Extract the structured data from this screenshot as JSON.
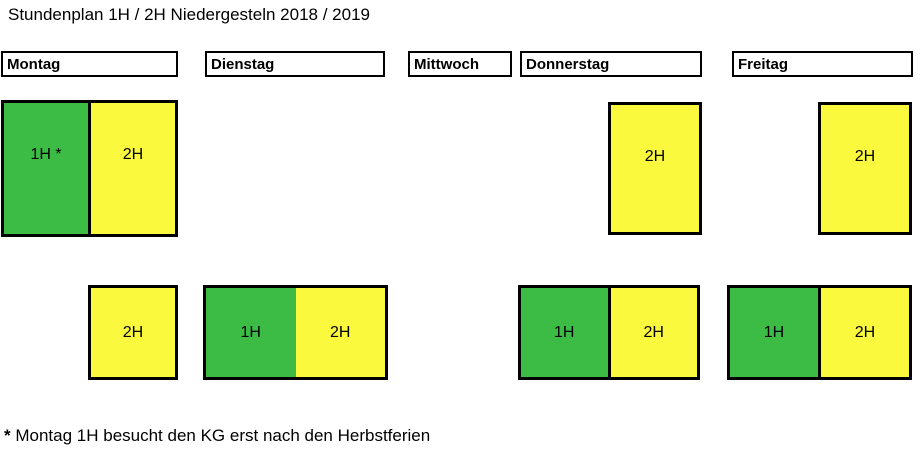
{
  "title": "Stundenplan 1H / 2H Niedergesteln 2018 / 2019",
  "colors": {
    "green": "#3cbb45",
    "yellow": "#fbf93d",
    "border": "#000000"
  },
  "days": [
    {
      "label": "Montag"
    },
    {
      "label": "Dienstag"
    },
    {
      "label": "Mittwoch"
    },
    {
      "label": "Donnerstag"
    },
    {
      "label": "Freitag"
    }
  ],
  "blocks": {
    "montag_morgen": {
      "segments": [
        {
          "label": "1H *",
          "color": "green"
        },
        {
          "label": "2H",
          "color": "yellow"
        }
      ]
    },
    "montag_nachmittag": {
      "segments": [
        {
          "label": "2H",
          "color": "yellow"
        }
      ]
    },
    "dienstag_nachmittag": {
      "segments": [
        {
          "label": "1H",
          "color": "green"
        },
        {
          "label": "2H",
          "color": "yellow"
        }
      ]
    },
    "donnerstag_morgen": {
      "segments": [
        {
          "label": "2H",
          "color": "yellow"
        }
      ]
    },
    "donnerstag_nachmittag": {
      "segments": [
        {
          "label": "1H",
          "color": "green"
        },
        {
          "label": "2H",
          "color": "yellow"
        }
      ]
    },
    "freitag_morgen": {
      "segments": [
        {
          "label": "2H",
          "color": "yellow"
        }
      ]
    },
    "freitag_nachmittag": {
      "segments": [
        {
          "label": "1H",
          "color": "green"
        },
        {
          "label": "2H",
          "color": "yellow"
        }
      ]
    }
  },
  "footnote": {
    "marker": "*",
    "text": "Montag 1H besucht den KG erst nach den Herbstferien"
  }
}
